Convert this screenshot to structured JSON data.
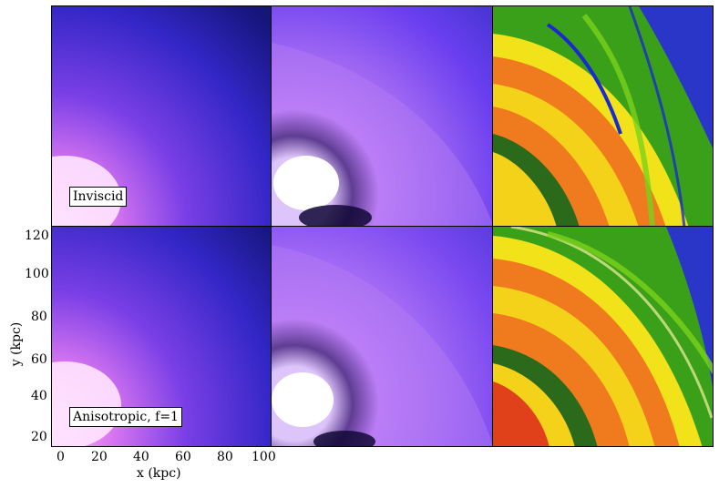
{
  "labels": {
    "row1": "Inviscid",
    "row2": "Anisotropic, f=1"
  },
  "axes": {
    "xlabel": "x (kpc)",
    "ylabel": "y (kpc)",
    "xticks": [
      "0",
      "20",
      "40",
      "60",
      "80",
      "100"
    ],
    "yticks": [
      "120",
      "100",
      "80",
      "60",
      "40",
      "20"
    ]
  },
  "colors": {
    "density_background": "#15157a",
    "density_glow": "#ff9cff",
    "temperature_background": "#6a3df0",
    "temperature_hot": "#f08cff",
    "shock_orange": "#f05a1e",
    "shock_yellow": "#f5e51a",
    "shock_green": "#5aa21a",
    "shock_blue": "#1a2ad0"
  }
}
